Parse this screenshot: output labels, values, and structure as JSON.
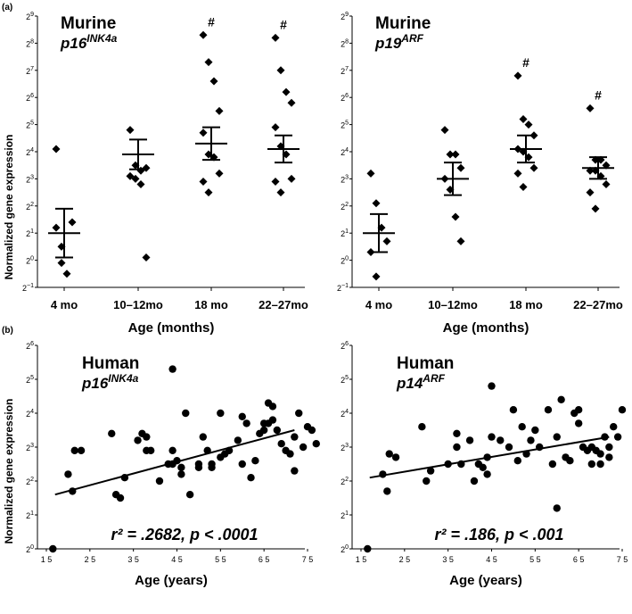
{
  "panel_a_label": "(a)",
  "panel_b_label": "(b)",
  "shared_ylabel_a": "Normalized gene expression",
  "shared_ylabel_b": "Normalized gene expression",
  "chart_data": [
    {
      "id": "a1",
      "type": "scatter",
      "species": "Murine",
      "gene": "p16",
      "gene_sup": "INK4a",
      "xlabel": "Age (months)",
      "categories": [
        "4 mo",
        "10–12mo",
        "18 mo",
        "22–27mo"
      ],
      "y_ticks": [
        "−1",
        "0",
        "1",
        "2",
        "3",
        "4",
        "5",
        "6",
        "7",
        "8",
        "9"
      ],
      "ylim": [
        -1,
        9
      ],
      "points": [
        [
          4.1,
          0.5,
          -0.5,
          1.4,
          1.2,
          -0.1
        ],
        [
          4.8,
          3.5,
          3.3,
          3.4,
          3.1,
          3.0,
          2.8,
          0.1
        ],
        [
          8.3,
          7.3,
          6.6,
          5.5,
          4.7,
          3.9,
          3.8,
          3.2,
          2.9,
          2.5
        ],
        [
          8.2,
          7.0,
          6.2,
          5.8,
          4.9,
          4.2,
          3.9,
          3.0,
          2.9,
          2.5
        ]
      ],
      "mean": [
        1.0,
        3.9,
        4.3,
        4.1
      ],
      "sem": [
        0.9,
        0.55,
        0.6,
        0.5
      ],
      "significance": [
        "",
        "",
        "#",
        "#"
      ]
    },
    {
      "id": "a2",
      "type": "scatter",
      "species": "Murine",
      "gene": "p19",
      "gene_sup": "ARF",
      "xlabel": "Age (months)",
      "categories": [
        "4 mo",
        "10–12mo",
        "18 mo",
        "22–27mo"
      ],
      "y_ticks": [
        "−1",
        "0",
        "1",
        "2",
        "3",
        "4",
        "5",
        "6",
        "7",
        "8",
        "9"
      ],
      "ylim": [
        -1,
        9
      ],
      "points": [
        [
          3.2,
          2.1,
          1.2,
          0.7,
          0.3,
          -0.6
        ],
        [
          4.8,
          3.9,
          3.9,
          3.4,
          3.0,
          2.6,
          1.6,
          0.7
        ],
        [
          6.8,
          5.2,
          5.0,
          4.6,
          4.1,
          4.0,
          3.8,
          3.4,
          3.2,
          2.7
        ],
        [
          5.6,
          3.7,
          3.7,
          3.5,
          3.3,
          3.3,
          3.1,
          2.8,
          2.5,
          1.9
        ]
      ],
      "mean": [
        1.0,
        3.0,
        4.1,
        3.4
      ],
      "sem": [
        0.7,
        0.6,
        0.5,
        0.4
      ],
      "significance": [
        "",
        "",
        "#",
        "#"
      ]
    },
    {
      "id": "b1",
      "type": "scatter",
      "species": "Human",
      "gene": "p16",
      "gene_sup": "INK4a",
      "xlabel": "Age (years)",
      "x_ticks": [
        15,
        25,
        35,
        45,
        55,
        65,
        75
      ],
      "xlim": [
        15,
        75
      ],
      "y_ticks": [
        "0",
        "1",
        "2",
        "3",
        "4",
        "5",
        "6"
      ],
      "ylim": [
        0,
        6
      ],
      "stat_text": "r² = .2682, p < .0001",
      "points": [
        [
          16.5,
          0.0
        ],
        [
          20,
          2.2
        ],
        [
          21,
          1.7
        ],
        [
          21.5,
          2.9
        ],
        [
          23,
          2.9
        ],
        [
          30,
          3.4
        ],
        [
          31,
          1.6
        ],
        [
          32,
          1.5
        ],
        [
          36,
          3.2
        ],
        [
          37,
          3.4
        ],
        [
          38,
          2.9
        ],
        [
          39,
          2.9
        ],
        [
          38,
          3.3
        ],
        [
          41,
          2.0
        ],
        [
          43,
          2.5
        ],
        [
          44,
          2.5
        ],
        [
          45,
          2.6
        ],
        [
          46,
          2.2
        ],
        [
          48,
          1.6
        ],
        [
          50,
          2.4
        ],
        [
          51,
          3.3
        ],
        [
          52,
          2.9
        ],
        [
          53,
          2.4
        ],
        [
          55,
          2.7
        ],
        [
          56,
          2.8
        ],
        [
          57,
          2.9
        ],
        [
          59,
          3.2
        ],
        [
          60,
          2.5
        ],
        [
          61,
          3.7
        ],
        [
          62,
          2.1
        ],
        [
          63,
          2.6
        ],
        [
          64,
          3.4
        ],
        [
          65,
          3.5
        ],
        [
          66,
          3.7
        ],
        [
          67,
          3.8
        ],
        [
          68,
          3.5
        ],
        [
          69,
          3.1
        ],
        [
          70,
          2.9
        ],
        [
          71,
          2.8
        ],
        [
          72,
          3.3
        ],
        [
          75,
          3.6
        ],
        [
          76,
          3.5
        ],
        [
          77,
          3.1
        ],
        [
          44,
          5.3
        ],
        [
          44,
          2.9
        ],
        [
          47,
          4.0
        ],
        [
          50,
          2.5
        ],
        [
          53,
          2.5
        ],
        [
          55,
          4.0
        ],
        [
          60,
          3.9
        ],
        [
          65,
          3.7
        ],
        [
          66,
          4.3
        ],
        [
          67,
          4.2
        ],
        [
          73,
          4.0
        ],
        [
          74,
          3.0
        ],
        [
          72,
          2.3
        ],
        [
          46,
          2.4
        ],
        [
          33,
          2.1
        ]
      ],
      "fit_line": [
        [
          17,
          1.6
        ],
        [
          72,
          3.5
        ]
      ]
    },
    {
      "id": "b2",
      "type": "scatter",
      "species": "Human",
      "gene": "p14",
      "gene_sup": "ARF",
      "xlabel": "Age (years)",
      "x_ticks": [
        15,
        25,
        35,
        45,
        55,
        65,
        75
      ],
      "xlim": [
        15,
        75
      ],
      "y_ticks": [
        "0",
        "1",
        "2",
        "3",
        "4",
        "5",
        "6"
      ],
      "ylim": [
        0,
        6
      ],
      "stat_text": "r² = .186, p < .001",
      "points": [
        [
          16.5,
          0.0
        ],
        [
          20,
          2.2
        ],
        [
          21,
          1.7
        ],
        [
          21.5,
          2.8
        ],
        [
          23,
          2.7
        ],
        [
          29,
          3.6
        ],
        [
          30,
          2.0
        ],
        [
          31,
          2.3
        ],
        [
          35,
          2.5
        ],
        [
          37,
          3.4
        ],
        [
          37,
          3.0
        ],
        [
          38,
          2.5
        ],
        [
          40,
          3.2
        ],
        [
          41,
          2.0
        ],
        [
          42,
          2.5
        ],
        [
          43,
          2.4
        ],
        [
          44,
          2.7
        ],
        [
          45,
          4.8
        ],
        [
          45,
          3.3
        ],
        [
          47,
          3.2
        ],
        [
          49,
          3.0
        ],
        [
          50,
          4.1
        ],
        [
          51,
          2.6
        ],
        [
          52,
          3.6
        ],
        [
          53,
          2.8
        ],
        [
          54,
          3.2
        ],
        [
          56,
          3.0
        ],
        [
          58,
          4.1
        ],
        [
          59,
          2.5
        ],
        [
          60,
          1.2
        ],
        [
          61,
          4.4
        ],
        [
          62,
          2.7
        ],
        [
          63,
          2.6
        ],
        [
          64,
          4.0
        ],
        [
          65,
          4.1
        ],
        [
          66,
          3.0
        ],
        [
          67,
          2.9
        ],
        [
          68,
          3.0
        ],
        [
          69,
          2.9
        ],
        [
          70,
          2.8
        ],
        [
          71,
          3.3
        ],
        [
          72,
          3.0
        ],
        [
          73,
          3.6
        ],
        [
          74,
          3.3
        ],
        [
          75,
          4.1
        ],
        [
          55,
          3.5
        ],
        [
          60,
          3.3
        ],
        [
          65,
          3.7
        ],
        [
          44,
          2.2
        ],
        [
          68,
          2.5
        ],
        [
          70,
          2.5
        ],
        [
          72,
          2.7
        ]
      ],
      "fit_line": [
        [
          17,
          2.1
        ],
        [
          72,
          3.3
        ]
      ]
    }
  ]
}
